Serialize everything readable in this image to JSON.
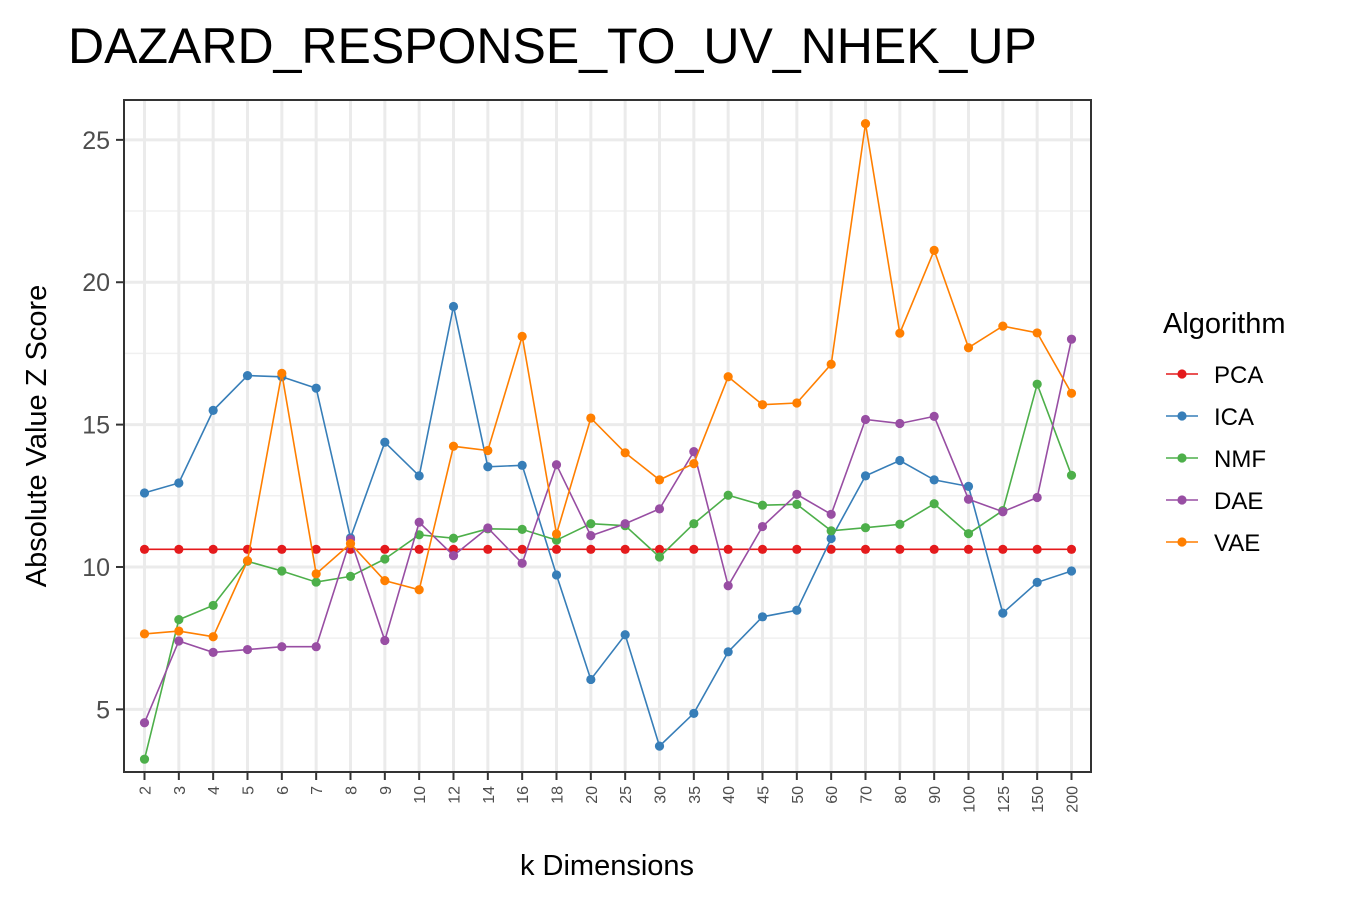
{
  "chart_data": {
    "type": "line",
    "title": "DAZARD_RESPONSE_TO_UV_NHEK_UP",
    "xlabel": "k Dimensions",
    "ylabel": "Absolute Value Z Score",
    "ylim": [
      2.8,
      26.4
    ],
    "yticks": [
      5,
      10,
      15,
      20,
      25
    ],
    "grid": true,
    "legend_title": "Algorithm",
    "legend_position": "right",
    "categories": [
      "2",
      "3",
      "4",
      "5",
      "6",
      "7",
      "8",
      "9",
      "10",
      "12",
      "14",
      "16",
      "18",
      "20",
      "25",
      "30",
      "35",
      "40",
      "45",
      "50",
      "60",
      "70",
      "80",
      "90",
      "100",
      "125",
      "150",
      "200"
    ],
    "series": [
      {
        "name": "PCA",
        "color": "#e41a1c",
        "values": [
          10.62,
          10.62,
          10.62,
          10.62,
          10.62,
          10.62,
          10.62,
          10.62,
          10.62,
          10.62,
          10.62,
          10.62,
          10.62,
          10.62,
          10.62,
          10.62,
          10.62,
          10.62,
          10.62,
          10.62,
          10.62,
          10.62,
          10.62,
          10.62,
          10.62,
          10.62,
          10.62,
          10.62
        ]
      },
      {
        "name": "ICA",
        "color": "#377eb8",
        "values": [
          12.6,
          12.95,
          15.5,
          16.72,
          16.68,
          16.28,
          11.02,
          14.38,
          13.2,
          19.15,
          13.52,
          13.57,
          9.72,
          6.05,
          7.62,
          3.71,
          4.86,
          7.02,
          8.25,
          8.48,
          11.0,
          13.2,
          13.74,
          13.06,
          12.83,
          8.38,
          9.46,
          9.86
        ]
      },
      {
        "name": "NMF",
        "color": "#4daf4a",
        "values": [
          3.25,
          8.15,
          8.65,
          10.2,
          9.86,
          9.47,
          9.67,
          10.28,
          11.13,
          11.01,
          11.34,
          11.32,
          10.94,
          11.52,
          11.45,
          10.35,
          11.52,
          12.52,
          12.17,
          12.2,
          11.27,
          11.38,
          11.5,
          12.22,
          11.17,
          11.98,
          16.42,
          13.22
        ]
      },
      {
        "name": "DAE",
        "color": "#984ea3",
        "values": [
          4.53,
          7.4,
          7.0,
          7.1,
          7.2,
          7.2,
          10.97,
          7.42,
          11.57,
          10.4,
          11.37,
          10.13,
          13.59,
          11.1,
          11.52,
          12.04,
          14.05,
          9.34,
          11.42,
          12.55,
          11.85,
          15.18,
          15.04,
          15.29,
          12.38,
          11.94,
          12.44,
          18.0
        ]
      },
      {
        "name": "VAE",
        "color": "#ff7f00",
        "values": [
          7.65,
          7.75,
          7.55,
          10.22,
          16.8,
          9.76,
          10.82,
          9.52,
          9.2,
          14.24,
          14.09,
          18.1,
          11.16,
          15.23,
          14.01,
          13.06,
          13.63,
          16.68,
          15.7,
          15.76,
          17.12,
          25.57,
          18.21,
          21.12,
          17.7,
          18.46,
          18.22,
          16.1
        ]
      }
    ]
  }
}
